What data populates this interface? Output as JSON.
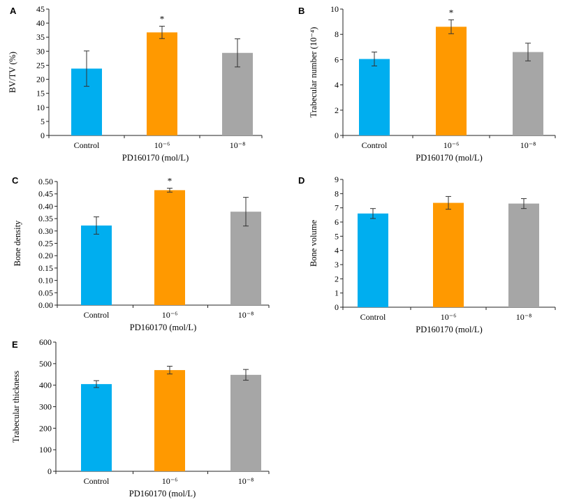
{
  "colors": {
    "control": "#00aeef",
    "dose6": "#ff9900",
    "dose8": "#a6a6a6",
    "axis": "#222222"
  },
  "chart_data": [
    {
      "panel": "A",
      "type": "bar",
      "categories": [
        "Control",
        "10⁻⁶",
        "10⁻⁸"
      ],
      "values": [
        23.8,
        36.7,
        29.4
      ],
      "errors": [
        6.3,
        2.2,
        5.0
      ],
      "significant": [
        false,
        true,
        false
      ],
      "ylim": [
        0,
        45
      ],
      "ystep": 5,
      "tick_decimals": 0,
      "ylabel": "BV/TV (%)",
      "xlabel": "PD160170 (mol/L)",
      "title": ""
    },
    {
      "panel": "B",
      "type": "bar",
      "categories": [
        "Control",
        "10⁻⁶",
        "10⁻⁸"
      ],
      "values": [
        6.05,
        8.6,
        6.6
      ],
      "errors": [
        0.55,
        0.55,
        0.7
      ],
      "significant": [
        false,
        true,
        false
      ],
      "ylim": [
        0,
        10
      ],
      "ystep": 2,
      "tick_decimals": 0,
      "ylabel": "Trabecular number (10⁻⁴)",
      "xlabel": "PD160170 (mol/L)",
      "title": ""
    },
    {
      "panel": "C",
      "type": "bar",
      "categories": [
        "Control",
        "10⁻⁶",
        "10⁻⁸"
      ],
      "values": [
        0.322,
        0.465,
        0.378
      ],
      "errors": [
        0.035,
        0.008,
        0.058
      ],
      "significant": [
        false,
        true,
        false
      ],
      "ylim": [
        0,
        0.5
      ],
      "ystep": 0.05,
      "tick_decimals": 2,
      "ylabel": "Bone density",
      "xlabel": "PD160170 (mol/L)",
      "title": ""
    },
    {
      "panel": "D",
      "type": "bar",
      "categories": [
        "Control",
        "10⁻⁶",
        "10⁻⁸"
      ],
      "values": [
        6.6,
        7.35,
        7.3
      ],
      "errors": [
        0.35,
        0.45,
        0.35
      ],
      "significant": [
        false,
        false,
        false
      ],
      "ylim": [
        0,
        9
      ],
      "ystep": 1,
      "tick_decimals": 0,
      "ylabel": "Bone volume",
      "xlabel": "PD160170 (mol/L)",
      "title": ""
    },
    {
      "panel": "E",
      "type": "bar",
      "categories": [
        "Control",
        "10⁻⁶",
        "10⁻⁸"
      ],
      "values": [
        405,
        470,
        448
      ],
      "errors": [
        16,
        18,
        25
      ],
      "significant": [
        false,
        false,
        false
      ],
      "ylim": [
        0,
        600
      ],
      "ystep": 100,
      "tick_decimals": 0,
      "ylabel": "Trabecular thickness",
      "xlabel": "PD160170 (mol/L)",
      "title": ""
    }
  ],
  "significance_marker": "*"
}
